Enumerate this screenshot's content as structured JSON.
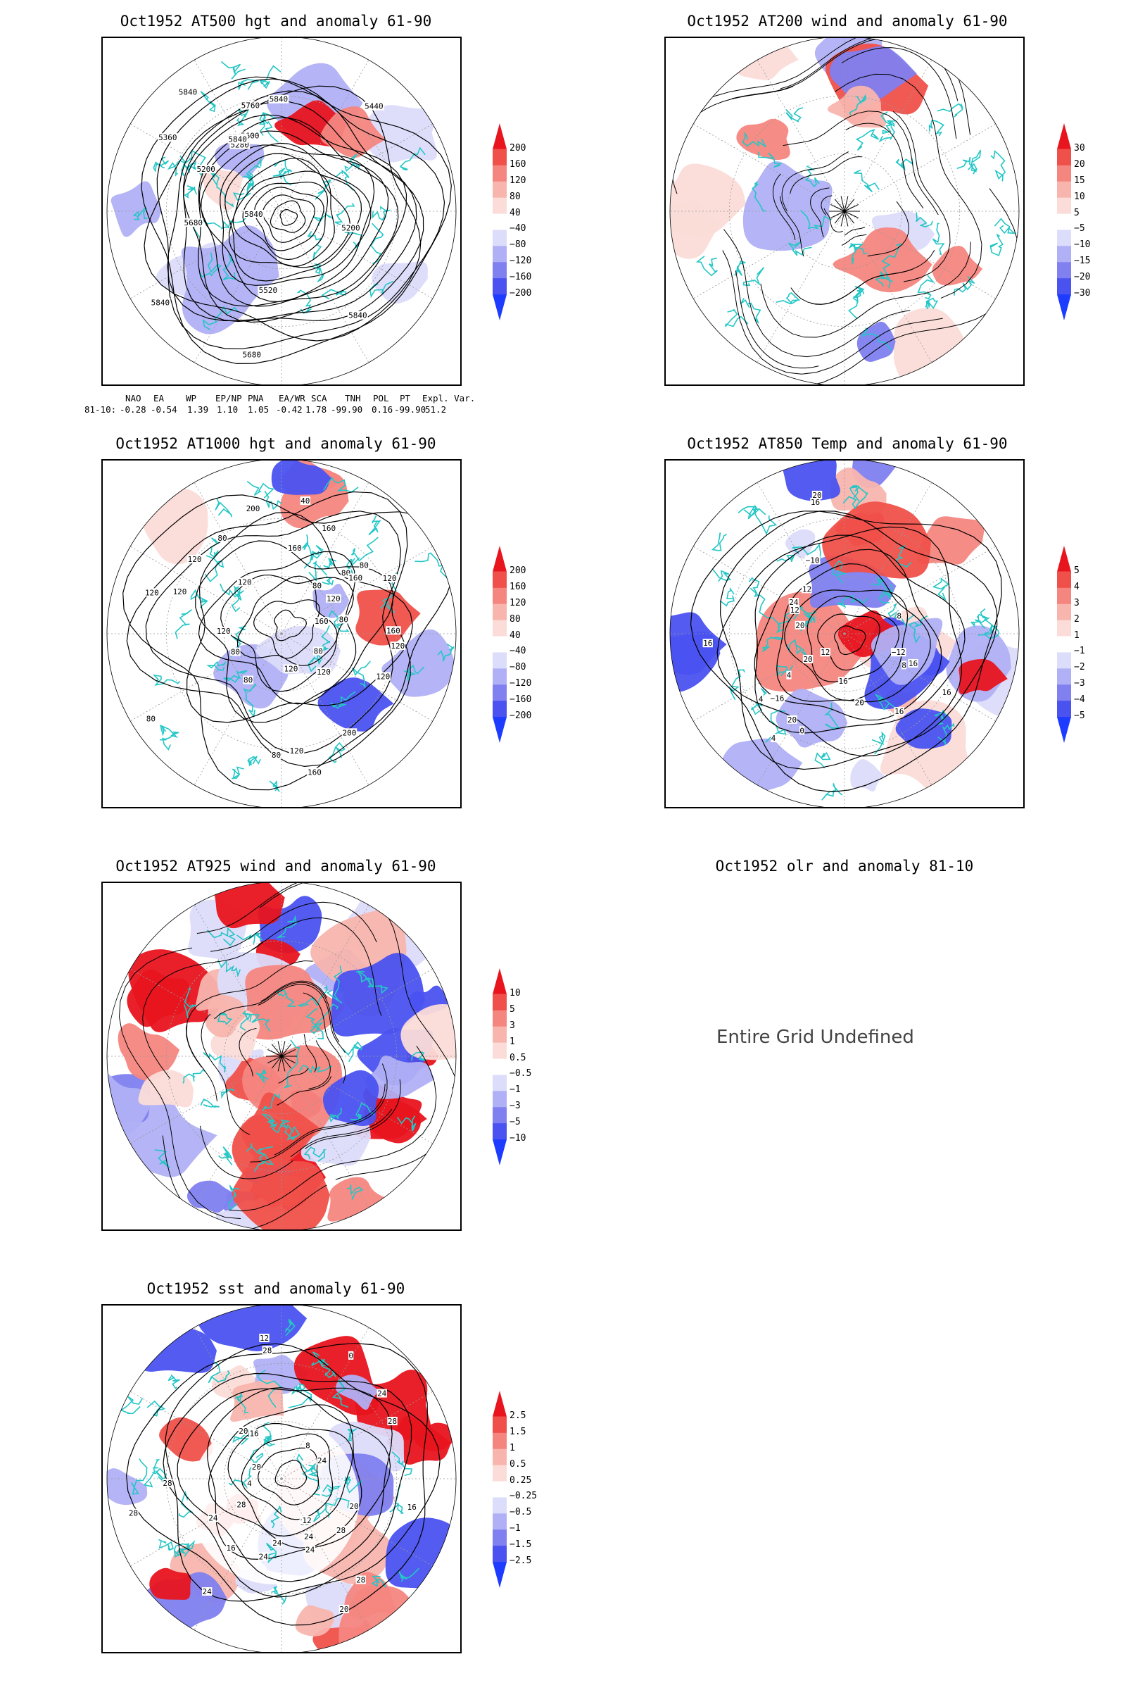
{
  "panels": [
    {
      "id": "p1",
      "title": "Oct1952 AT500 hgt and anomaly 61-90",
      "palette": "hgt",
      "map_kind": "hgt500",
      "colorbar": [
        "200",
        "160",
        "120",
        "80",
        "40",
        "−40",
        "−80",
        "−120",
        "−160",
        "−200"
      ],
      "contour_labels": [
        "5840",
        "5840",
        "5760",
        "5680",
        "5840",
        "5200",
        "5200",
        "5280",
        "5360",
        "5440",
        "5520",
        "5600",
        "5680",
        "5760",
        "5840",
        "5840",
        "5840"
      ]
    },
    {
      "id": "p2",
      "title": "Oct1952 AT200 wind and anomaly 61-90",
      "palette": "wind",
      "map_kind": "wind",
      "colorbar": [
        "30",
        "20",
        "15",
        "10",
        "5",
        "−5",
        "−10",
        "−15",
        "−20",
        "−30"
      ],
      "contour_labels": []
    },
    {
      "id": "p3",
      "title": "Oct1952 AT1000 hgt and anomaly 61-90",
      "palette": "hgt",
      "map_kind": "hgt1000",
      "colorbar": [
        "200",
        "160",
        "120",
        "80",
        "40",
        "−40",
        "−80",
        "−120",
        "−160",
        "−200"
      ],
      "contour_labels": [
        "80",
        "120",
        "160",
        "120",
        "160",
        "120",
        "120",
        "120",
        "160",
        "80",
        "120",
        "120",
        "120",
        "80",
        "40",
        "80",
        "160",
        "200",
        "160",
        "200",
        "80",
        "160",
        "80",
        "120",
        "120",
        "120",
        "120",
        "80",
        "80",
        "80",
        "80"
      ]
    },
    {
      "id": "p4",
      "title": "Oct1952 AT850 Temp and anomaly 61-90",
      "palette": "temp",
      "map_kind": "temp",
      "colorbar": [
        "5",
        "4",
        "3",
        "2",
        "1",
        "−1",
        "−2",
        "−3",
        "−4",
        "−5"
      ],
      "contour_labels": [
        "16",
        "16",
        "12",
        "8",
        "4",
        "12",
        "20",
        "16",
        "−12",
        "−16",
        "−10",
        "8",
        "4",
        "0",
        "4",
        "12",
        "16",
        "20",
        "24",
        "20",
        "16",
        "20",
        "16",
        "20"
      ]
    },
    {
      "id": "p5",
      "title": "Oct1952 AT925 wind and anomaly 61-90",
      "palette": "wind925",
      "map_kind": "wind",
      "colorbar": [
        "10",
        "5",
        "3",
        "1",
        "0.5",
        "−0.5",
        "−1",
        "−3",
        "−5",
        "−10"
      ],
      "contour_labels": []
    },
    {
      "id": "p6",
      "title": "Oct1952 olr and anomaly 81-10",
      "palette": "none",
      "map_kind": "undefined",
      "colorbar": [],
      "contour_labels": [],
      "message": "Entire Grid Undefined"
    },
    {
      "id": "p7",
      "title": "Oct1952 sst and anomaly 61-90",
      "palette": "sst",
      "map_kind": "sst",
      "colorbar": [
        "2.5",
        "1.5",
        "1",
        "0.5",
        "0.25",
        "−0.25",
        "−0.5",
        "−1",
        "−1.5",
        "−2.5"
      ],
      "contour_labels": [
        "28",
        "28",
        "24",
        "28",
        "24",
        "20",
        "24",
        "20",
        "16",
        "12",
        "16",
        "12",
        "24",
        "28",
        "24",
        "20",
        "16",
        "12",
        "8",
        "4",
        "0",
        "24",
        "28",
        "28",
        "24",
        "20",
        "24",
        "28"
      ]
    }
  ],
  "teleconnections": {
    "headers": [
      "NAO",
      "EA",
      "WP",
      "EP/NP",
      "PNA",
      "EA/WR",
      "SCA",
      "TNH",
      "POL",
      "PT",
      "Expl. Var."
    ],
    "row_label": "81-10:",
    "values": [
      "-0.28",
      "-0.54",
      "1.39",
      "1.10",
      "1.05",
      "-0.42",
      "1.78",
      "-99.90",
      "0.16",
      "-99.90",
      "51.2"
    ]
  },
  "colors": {
    "coast": "#24c6c6",
    "contour": "#000000",
    "red_strong": "#e8141e",
    "blue_strong": "#1e3cff"
  }
}
